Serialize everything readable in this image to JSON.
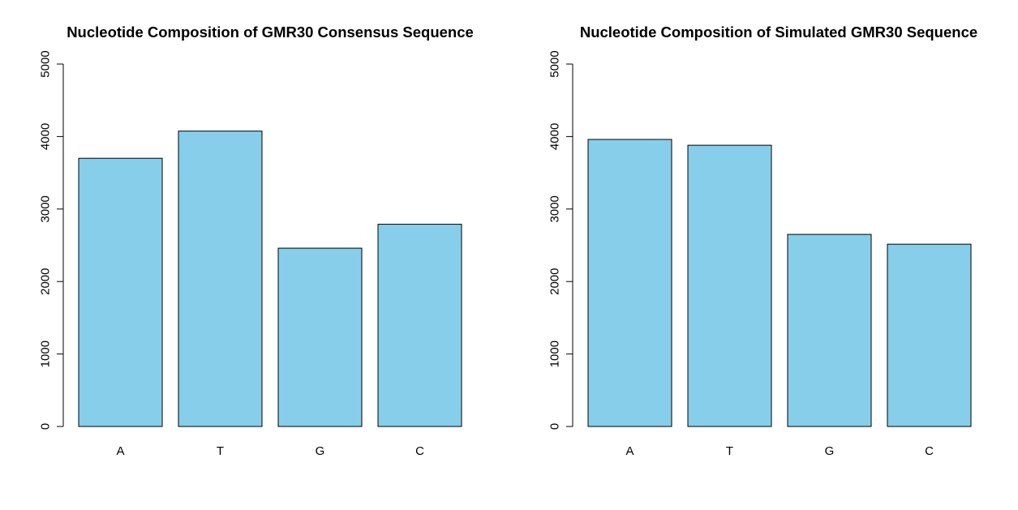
{
  "chart_data": [
    {
      "type": "bar",
      "title": "Nucleotide Composition of GMR30 Consensus Sequence",
      "categories": [
        "A",
        "T",
        "G",
        "C"
      ],
      "values": [
        3700,
        4075,
        2460,
        2790
      ],
      "xlabel": "",
      "ylabel": "",
      "ylim": [
        0,
        5000
      ],
      "yticks": [
        "0",
        "1000",
        "2000",
        "3000",
        "4000",
        "5000"
      ],
      "bar_color": "#87CEEB",
      "grid": false
    },
    {
      "type": "bar",
      "title": "Nucleotide Composition of Simulated GMR30 Sequence",
      "categories": [
        "A",
        "T",
        "G",
        "C"
      ],
      "values": [
        3960,
        3880,
        2650,
        2515
      ],
      "xlabel": "",
      "ylabel": "",
      "ylim": [
        0,
        5000
      ],
      "yticks": [
        "0",
        "1000",
        "2000",
        "3000",
        "4000",
        "5000"
      ],
      "bar_color": "#87CEEB",
      "grid": false
    }
  ]
}
